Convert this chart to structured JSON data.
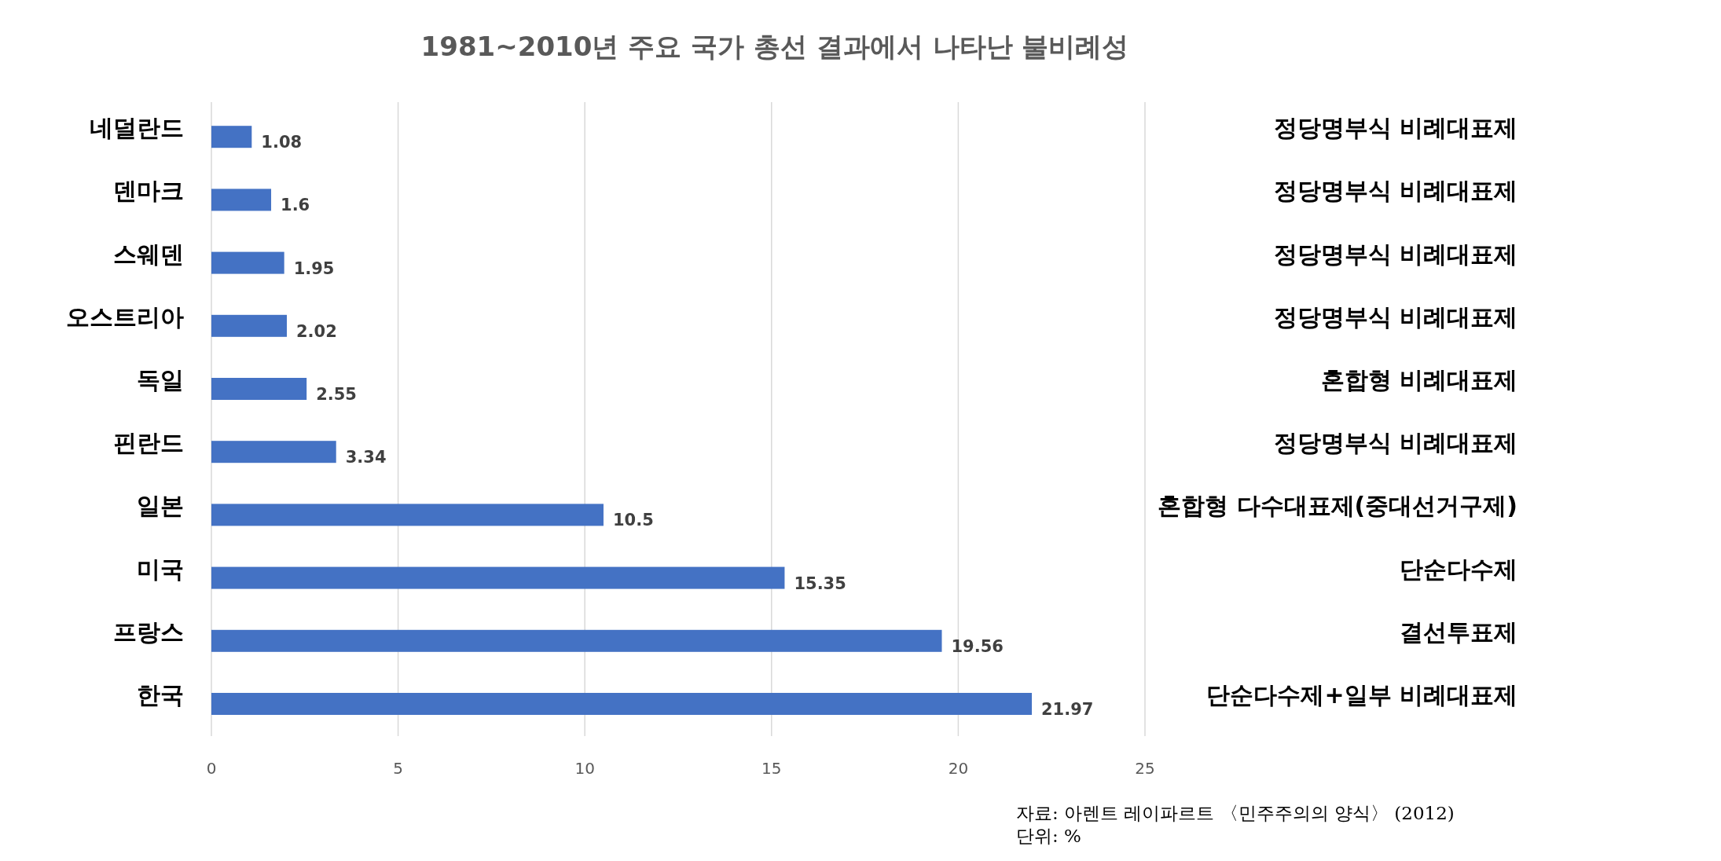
{
  "chart_data": {
    "type": "bar",
    "orientation": "horizontal",
    "title": "1981~2010년 주요 국가 총선 결과에서 나타난 불비례성",
    "categories": [
      "네덜란드",
      "덴마크",
      "스웨덴",
      "오스트리아",
      "독일",
      "핀란드",
      "일본",
      "미국",
      "프랑스",
      "한국"
    ],
    "values": [
      1.08,
      1.6,
      1.95,
      2.02,
      2.55,
      3.34,
      10.5,
      15.35,
      19.56,
      21.97
    ],
    "color": "#4472c4",
    "xlim": [
      0,
      25
    ],
    "xticks": [
      0,
      5,
      10,
      15,
      20,
      25
    ],
    "grid": true,
    "data_labels": true,
    "annotations": [
      "정당명부식 비례대표제",
      "정당명부식 비례대표제",
      "정당명부식 비례대표제",
      "정당명부식 비례대표제",
      "혼합형 비례대표제",
      "정당명부식 비례대표제",
      "혼합형 다수대표제(중대선거구제)",
      "단순다수제",
      "결선투표제",
      "단순다수제+일부 비례대표제",
      "자료: 아렌트 레이파르트 〈민주주의의 양식〉 (2012)",
      "단위: %"
    ]
  }
}
